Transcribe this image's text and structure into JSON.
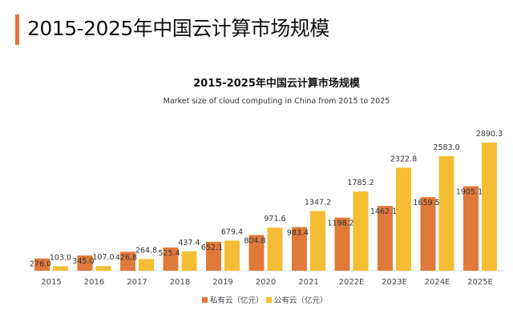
{
  "header": {
    "title": "2015-2025年中国云计算市场规模"
  },
  "colors": {
    "private": "#e07a3a",
    "public": "#f4bd33",
    "accent": "#e8743b"
  },
  "chart_data": {
    "type": "bar",
    "title": "2015-2025年中国云计算市场规模",
    "subtitle": "Market size of cloud computing in China from 2015 to 2025",
    "categories": [
      "2015",
      "2016",
      "2017",
      "2018",
      "2019",
      "2020",
      "2021",
      "2022E",
      "2023E",
      "2024E",
      "2025E"
    ],
    "series": [
      {
        "name": "私有云（亿元）",
        "values": [
          276.0,
          345.0,
          426.8,
          525.4,
          652.1,
          804.8,
          983.4,
          1198.2,
          1462.1,
          1659.5,
          1905.1
        ]
      },
      {
        "name": "公有云（亿元）",
        "values": [
          103.0,
          107.0,
          264.8,
          437.4,
          679.4,
          971.6,
          1347.2,
          1785.2,
          2322.8,
          2583.0,
          2890.3
        ]
      }
    ],
    "xlabel": "",
    "ylabel": "",
    "ylim": [
      0,
      2890.3
    ],
    "grid": false,
    "legend": "bottom"
  }
}
